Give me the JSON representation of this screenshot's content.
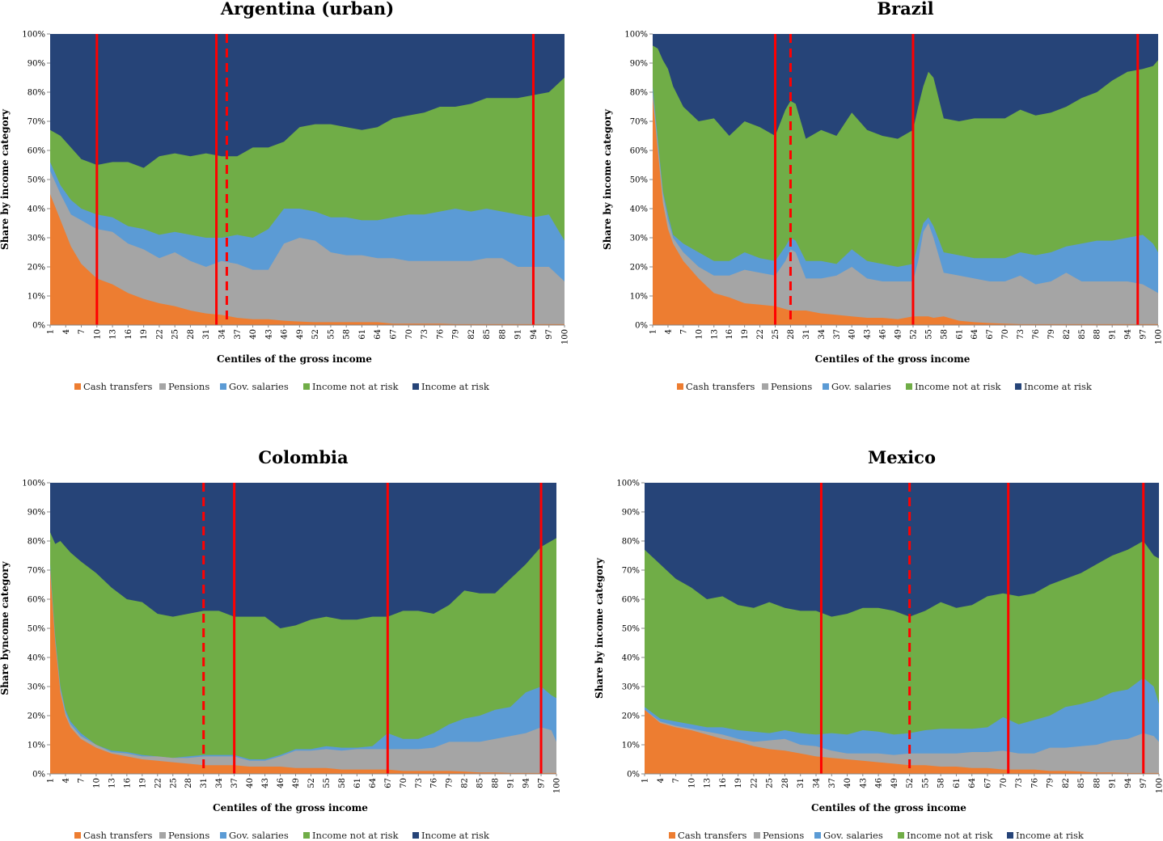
{
  "colors": {
    "cash_transfers": "#ED7D31",
    "pensions": "#A5A5A5",
    "gov_salaries": "#5B9BD5",
    "income_not_at_risk": "#70AD47",
    "income_at_risk": "#264478",
    "marker": "#FF0000"
  },
  "chart_data": [
    {
      "type": "area",
      "stacked": true,
      "title": "Argentina (urban)",
      "xlabel": "Centiles of the gross income",
      "ylabel": "Share by income category",
      "x_range": [
        1,
        100
      ],
      "x_ticks": [
        1,
        4,
        7,
        10,
        13,
        16,
        19,
        22,
        25,
        28,
        31,
        34,
        37,
        40,
        43,
        46,
        49,
        52,
        55,
        58,
        61,
        64,
        67,
        70,
        73,
        76,
        79,
        82,
        85,
        88,
        91,
        94,
        97,
        100
      ],
      "y_ticks": [
        "0%",
        "10%",
        "20%",
        "30%",
        "40%",
        "50%",
        "60%",
        "70%",
        "80%",
        "90%",
        "100%"
      ],
      "ylim": [
        0,
        100
      ],
      "legend_position": "bottom",
      "series_order": [
        "Cash transfers",
        "Pensions",
        "Gov. salaries",
        "Income not at risk",
        "Income at risk"
      ],
      "boundaries": {
        "x": [
          1,
          3,
          5,
          7,
          10,
          13,
          16,
          19,
          22,
          25,
          28,
          31,
          34,
          37,
          40,
          43,
          46,
          49,
          52,
          55,
          58,
          61,
          64,
          67,
          70,
          73,
          76,
          79,
          82,
          85,
          88,
          91,
          94,
          97,
          100
        ],
        "cash_transfers": [
          45,
          36,
          27,
          21,
          16,
          14,
          11,
          9,
          7.5,
          6.5,
          5,
          4,
          3.5,
          2.5,
          2,
          2,
          1.5,
          1.2,
          1,
          1,
          1,
          1,
          1,
          0.5,
          0.5,
          0.5,
          0.5,
          0.3,
          0.3,
          0.3,
          0.3,
          0.3,
          0.3,
          0.3,
          0.3
        ],
        "pensions": [
          53,
          45,
          38,
          36,
          33,
          32,
          28,
          26,
          23,
          25,
          22,
          20,
          22,
          21,
          19,
          19,
          28,
          30,
          29,
          25,
          24,
          24,
          23,
          23,
          22,
          22,
          22,
          22,
          22,
          23,
          23,
          20,
          20,
          20,
          15
        ],
        "gov_salaries": [
          56,
          48,
          43,
          40,
          38,
          37,
          34,
          33,
          31,
          32,
          31,
          30,
          30,
          31,
          30,
          33,
          40,
          40,
          39,
          37,
          37,
          36,
          36,
          37,
          38,
          38,
          39,
          40,
          39,
          40,
          39,
          38,
          37,
          38,
          29
        ],
        "income_not_at_risk": [
          67,
          65,
          61,
          57,
          55,
          56,
          56,
          54,
          58,
          59,
          58,
          59,
          58,
          58,
          61,
          61,
          63,
          68,
          69,
          69,
          68,
          67,
          68,
          71,
          72,
          73,
          75,
          75,
          76,
          78,
          78,
          78,
          79,
          80,
          85
        ]
      },
      "markers": [
        {
          "x": 10,
          "style": "solid"
        },
        {
          "x": 33,
          "style": "solid"
        },
        {
          "x": 35,
          "style": "dashed"
        },
        {
          "x": 94,
          "style": "solid"
        }
      ]
    },
    {
      "type": "area",
      "stacked": true,
      "title": "Brazil",
      "xlabel": "Centiles of the gross income",
      "ylabel": "Share by income category",
      "x_range": [
        1,
        100
      ],
      "x_ticks": [
        1,
        4,
        7,
        10,
        13,
        16,
        19,
        22,
        25,
        28,
        31,
        34,
        37,
        40,
        43,
        46,
        49,
        52,
        55,
        58,
        61,
        64,
        67,
        70,
        73,
        76,
        79,
        82,
        85,
        88,
        91,
        94,
        97,
        100
      ],
      "y_ticks": [
        "0%",
        "10%",
        "20%",
        "30%",
        "40%",
        "50%",
        "60%",
        "70%",
        "80%",
        "90%",
        "100%"
      ],
      "ylim": [
        0,
        100
      ],
      "legend_position": "bottom",
      "series_order": [
        "Cash transfers",
        "Pensions",
        "Gov. salaries",
        "Income not at risk",
        "Income at risk"
      ],
      "boundaries": {
        "x": [
          1,
          2,
          3,
          4,
          5,
          7,
          10,
          13,
          16,
          19,
          22,
          25,
          27,
          28,
          29,
          31,
          34,
          37,
          40,
          43,
          46,
          49,
          52,
          53,
          54,
          55,
          56,
          58,
          61,
          64,
          67,
          70,
          73,
          76,
          79,
          82,
          85,
          88,
          91,
          94,
          97,
          99,
          100
        ],
        "cash_transfers": [
          78,
          60,
          42,
          33,
          28,
          22,
          16,
          11,
          9.5,
          7.5,
          7,
          6.5,
          5.5,
          5,
          5,
          5,
          4,
          3.5,
          3,
          2.5,
          2.5,
          2,
          3,
          3,
          3,
          3,
          2.5,
          3,
          1.5,
          1,
          0.7,
          0.5,
          0.3,
          0.3,
          0.3,
          0.3,
          0.3,
          0.3,
          0.3,
          0.3,
          0.3,
          0.3,
          0.3
        ],
        "pensions": [
          80,
          62,
          45,
          36,
          30,
          25,
          20,
          17,
          17,
          19,
          18,
          17,
          22,
          26,
          25,
          16,
          16,
          17,
          20,
          16,
          15,
          15,
          15,
          22,
          32,
          35,
          30,
          18,
          17,
          16,
          15,
          15,
          17,
          14,
          15,
          18,
          15,
          15,
          15,
          15,
          14,
          12,
          11
        ],
        "gov_salaries": [
          82,
          64,
          46,
          38,
          31,
          28,
          25,
          22,
          22,
          25,
          23,
          22,
          27,
          30,
          29,
          22,
          22,
          21,
          26,
          22,
          21,
          20,
          21,
          28,
          35,
          37,
          34,
          25,
          24,
          23,
          23,
          23,
          25,
          24,
          25,
          27,
          28,
          29,
          29,
          30,
          31,
          28,
          25
        ],
        "income_not_at_risk": [
          96,
          95,
          91,
          88,
          82,
          75,
          70,
          71,
          65,
          70,
          68,
          65,
          74,
          77,
          76,
          64,
          67,
          65,
          73,
          67,
          65,
          64,
          67,
          75,
          82,
          87,
          85,
          71,
          70,
          71,
          71,
          71,
          74,
          72,
          73,
          75,
          78,
          80,
          84,
          87,
          88,
          89,
          91
        ]
      },
      "markers": [
        {
          "x": 25,
          "style": "solid"
        },
        {
          "x": 28,
          "style": "dashed"
        },
        {
          "x": 52,
          "style": "solid"
        },
        {
          "x": 96,
          "style": "solid"
        }
      ]
    },
    {
      "type": "area",
      "stacked": true,
      "title": "Colombia",
      "xlabel": "Centiles of the gross income",
      "ylabel": "Share byncome category",
      "x_range": [
        1,
        100
      ],
      "x_ticks": [
        1,
        4,
        7,
        10,
        13,
        16,
        19,
        22,
        25,
        28,
        31,
        34,
        37,
        40,
        43,
        46,
        49,
        52,
        55,
        58,
        61,
        64,
        67,
        70,
        73,
        76,
        79,
        82,
        85,
        88,
        91,
        94,
        97,
        100
      ],
      "y_ticks": [
        "0%",
        "10%",
        "20%",
        "30%",
        "40%",
        "50%",
        "60%",
        "70%",
        "80%",
        "90%",
        "100%"
      ],
      "ylim": [
        0,
        100
      ],
      "legend_position": "bottom",
      "series_order": [
        "Cash transfers",
        "Pensions",
        "Gov. salaries",
        "Income not at risk",
        "Income at risk"
      ],
      "boundaries": {
        "x": [
          1,
          2,
          3,
          4,
          5,
          7,
          10,
          13,
          16,
          19,
          22,
          25,
          28,
          31,
          34,
          37,
          40,
          43,
          46,
          49,
          52,
          55,
          58,
          61,
          64,
          67,
          70,
          73,
          76,
          79,
          82,
          85,
          88,
          91,
          94,
          97,
          99,
          100
        ],
        "cash_transfers": [
          70,
          45,
          28,
          20,
          16,
          12,
          9,
          7,
          6,
          5,
          4.5,
          4,
          3.5,
          3,
          3,
          3,
          2.5,
          2.5,
          2.5,
          2,
          2,
          2,
          1.5,
          1.5,
          1.5,
          1.5,
          1,
          1,
          1,
          1,
          0.8,
          0.5,
          0.5,
          0.3,
          0.3,
          0.3,
          0.3,
          0.3
        ],
        "pensions": [
          71,
          46,
          29,
          21,
          17,
          13,
          10,
          7.5,
          7,
          6,
          6,
          5.5,
          5.5,
          6,
          6,
          6,
          4.5,
          4.5,
          6,
          8,
          8,
          8.5,
          8,
          8.5,
          8.5,
          8.5,
          8.5,
          8.5,
          9,
          11,
          11,
          11,
          12,
          13,
          14,
          16,
          15,
          11
        ],
        "gov_salaries": [
          72,
          47,
          30,
          22,
          18,
          14,
          10,
          8,
          7.5,
          6.5,
          6,
          5.5,
          6,
          6.5,
          6.5,
          6.5,
          5,
          5,
          6.5,
          8.5,
          8.5,
          9.5,
          9,
          9,
          9.5,
          14,
          12,
          12,
          14,
          17,
          19,
          20,
          22,
          23,
          28,
          30,
          27,
          26
        ],
        "income_not_at_risk": [
          83,
          79,
          80,
          78,
          76,
          73,
          69,
          64,
          60,
          59,
          55,
          54,
          55,
          56,
          56,
          54,
          54,
          54,
          50,
          51,
          53,
          54,
          53,
          53,
          54,
          54,
          56,
          56,
          55,
          58,
          63,
          62,
          62,
          67,
          72,
          78,
          80,
          81
        ]
      },
      "markers": [
        {
          "x": 31,
          "style": "dashed"
        },
        {
          "x": 37,
          "style": "solid"
        },
        {
          "x": 67,
          "style": "solid"
        },
        {
          "x": 97,
          "style": "solid"
        }
      ]
    },
    {
      "type": "area",
      "stacked": true,
      "title": "Mexico",
      "xlabel": "Centiles of the gross income",
      "ylabel": "Share by income category",
      "x_range": [
        1,
        100
      ],
      "x_ticks": [
        1,
        4,
        7,
        10,
        13,
        16,
        19,
        22,
        25,
        28,
        31,
        34,
        37,
        40,
        43,
        46,
        49,
        52,
        55,
        58,
        61,
        64,
        67,
        70,
        73,
        76,
        79,
        82,
        85,
        88,
        91,
        94,
        97,
        100
      ],
      "y_ticks": [
        "0%",
        "10%",
        "20%",
        "30%",
        "40%",
        "50%",
        "60%",
        "70%",
        "80%",
        "90%",
        "100%"
      ],
      "ylim": [
        0,
        100
      ],
      "legend_position": "bottom",
      "series_order": [
        "Cash transfers",
        "Pensions",
        "Gov. salaries",
        "Income not at risk",
        "Income at risk"
      ],
      "boundaries": {
        "x": [
          1,
          4,
          7,
          10,
          13,
          16,
          19,
          22,
          25,
          28,
          31,
          34,
          37,
          40,
          43,
          46,
          49,
          52,
          55,
          58,
          61,
          64,
          67,
          70,
          73,
          76,
          79,
          82,
          85,
          88,
          91,
          94,
          97,
          99,
          100
        ],
        "cash_transfers": [
          22,
          17.5,
          16,
          15,
          13.5,
          12,
          11,
          9.5,
          8.5,
          8,
          7,
          6,
          5.5,
          5,
          4.5,
          4,
          3.5,
          3,
          3,
          2.5,
          2.5,
          2,
          2,
          1.5,
          1.5,
          1.5,
          1,
          1,
          0.8,
          0.5,
          0.5,
          0.3,
          0.3,
          0.3,
          0.3
        ],
        "pensions": [
          22,
          18,
          16.5,
          15.5,
          14.5,
          13.5,
          12,
          11,
          11.5,
          12,
          10,
          9.5,
          8,
          7,
          7,
          7,
          6.5,
          7,
          7,
          7,
          7,
          7.5,
          7.5,
          8,
          7,
          7,
          9,
          9,
          9.5,
          10,
          11.5,
          12,
          14,
          13,
          11
        ],
        "gov_salaries": [
          23,
          19,
          18,
          17,
          16,
          16,
          15,
          14.5,
          14,
          15,
          14,
          13.5,
          14,
          13.5,
          15,
          14.5,
          13.5,
          14,
          15,
          15.5,
          15.5,
          15.5,
          16,
          19.5,
          17,
          18.5,
          20,
          23,
          24,
          25.5,
          28,
          29,
          33,
          30,
          24
        ],
        "income_not_at_risk": [
          77,
          72,
          67,
          64,
          60,
          61,
          58,
          57,
          59,
          57,
          56,
          56,
          54,
          55,
          57,
          57,
          56,
          54,
          56,
          59,
          57,
          58,
          61,
          62,
          61,
          62,
          65,
          67,
          69,
          72,
          75,
          77,
          80,
          75,
          74
        ]
      },
      "markers": [
        {
          "x": 35,
          "style": "solid"
        },
        {
          "x": 52,
          "style": "dashed"
        },
        {
          "x": 71,
          "style": "solid"
        },
        {
          "x": 97,
          "style": "solid"
        }
      ]
    }
  ],
  "legend": {
    "items": [
      "Cash transfers",
      "Pensions",
      "Gov. salaries",
      "Income not at risk",
      "Income at risk"
    ],
    "keys": [
      "cash_transfers",
      "pensions",
      "gov_salaries",
      "income_not_at_risk",
      "income_at_risk"
    ]
  }
}
